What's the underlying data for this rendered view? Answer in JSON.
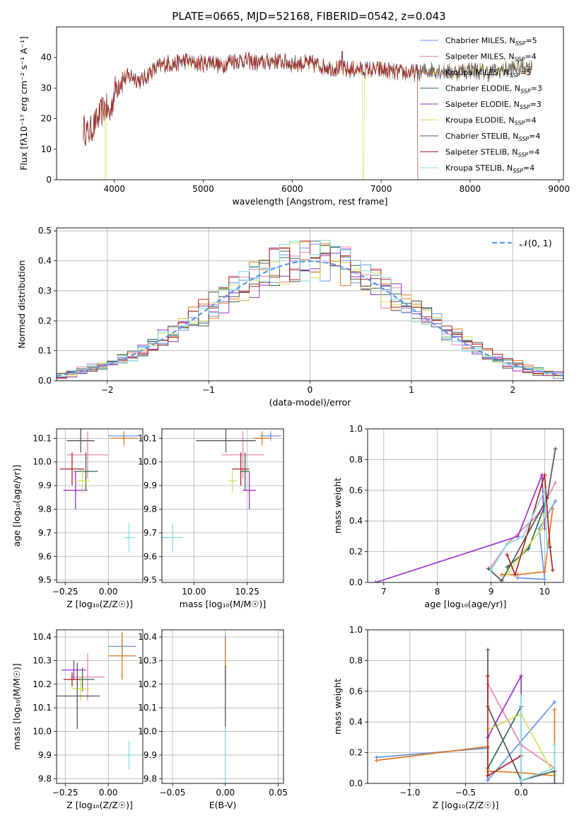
{
  "figure": {
    "title": "PLATE=0665, MJD=52168, FIBERID=0542, z=0.043"
  },
  "series_colors": [
    "#6495ed",
    "#ee82ae",
    "#e0781e",
    "#2f6e57",
    "#9932cc",
    "#d4e157",
    "#555555",
    "#b22222",
    "#7fdfe8"
  ],
  "chart_data": [
    {
      "id": "spectrum",
      "type": "line",
      "xlabel": "wavelength [Angstrom, rest frame]",
      "ylabel": "Flux [f$_\\lambda$10$^{-17}$ erg cm$^{-2}$ s$^{-1}$ A$^{-1}$]",
      "ylabel_text": "Flux [fλ10⁻¹⁷ erg cm⁻² s⁻¹ A⁻¹]",
      "xlim": [
        3350,
        9050
      ],
      "ylim": [
        0,
        50
      ],
      "xticks": [
        4000,
        5000,
        6000,
        7000,
        8000,
        9000
      ],
      "yticks": [
        0,
        10,
        20,
        30,
        40
      ],
      "legend_placement": "top-right",
      "series": [
        {
          "name": "Chabrier MILES, N",
          "sub": "SSP",
          "suffix": "=5"
        },
        {
          "name": "Salpeter MILES, N",
          "sub": "SSP",
          "suffix": "=4"
        },
        {
          "name": "Kroupa MILES, N",
          "sub": "SSP",
          "suffix": "=5"
        },
        {
          "name": "Chabrier ELODIE, N",
          "sub": "SSP",
          "suffix": "=3"
        },
        {
          "name": "Salpeter ELODIE, N",
          "sub": "SSP",
          "suffix": "=3"
        },
        {
          "name": "Kroupa ELODIE, N",
          "sub": "SSP",
          "suffix": "=4"
        },
        {
          "name": "Chabrier STELIB, N",
          "sub": "SSP",
          "suffix": "=4"
        },
        {
          "name": "Salpeter STELIB, N",
          "sub": "SSP",
          "suffix": "=4"
        },
        {
          "name": "Kroupa STELIB, N",
          "sub": "SSP",
          "suffix": "=4"
        }
      ],
      "continuum": [
        [
          3650,
          17
        ],
        [
          3700,
          15
        ],
        [
          3800,
          19
        ],
        [
          3850,
          22
        ],
        [
          3900,
          24
        ],
        [
          3950,
          21
        ],
        [
          4000,
          29
        ],
        [
          4050,
          32
        ],
        [
          4100,
          33
        ],
        [
          4200,
          34
        ],
        [
          4300,
          32
        ],
        [
          4400,
          35
        ],
        [
          4500,
          37
        ],
        [
          4600,
          38
        ],
        [
          4700,
          38
        ],
        [
          4800,
          39
        ],
        [
          4900,
          38
        ],
        [
          5000,
          38
        ],
        [
          5100,
          39
        ],
        [
          5200,
          37
        ],
        [
          5300,
          39
        ],
        [
          5400,
          39
        ],
        [
          5500,
          39
        ],
        [
          5600,
          38
        ],
        [
          5800,
          39
        ],
        [
          6000,
          38
        ],
        [
          6200,
          38
        ],
        [
          6400,
          37
        ],
        [
          6600,
          36
        ],
        [
          6800,
          36
        ],
        [
          7000,
          36
        ],
        [
          7200,
          35
        ],
        [
          7400,
          35
        ],
        [
          7600,
          36
        ],
        [
          7800,
          35
        ],
        [
          8000,
          36
        ],
        [
          8200,
          35
        ],
        [
          8400,
          36
        ],
        [
          8600,
          37
        ],
        [
          8700,
          37
        ]
      ],
      "dropouts": [
        {
          "series": 5,
          "x": 3900
        },
        {
          "series": 5,
          "x": 6800
        },
        {
          "series": 7,
          "x": 7420
        }
      ],
      "emission_peak": {
        "x": 6563,
        "y": 42
      }
    },
    {
      "id": "residual_histogram",
      "type": "histogram",
      "xlabel": "(data-model)/error",
      "ylabel": "Normed distribution",
      "xlim": [
        -2.5,
        2.5
      ],
      "ylim": [
        0,
        0.51
      ],
      "xticks": [
        -2,
        -1,
        0,
        1,
        2
      ],
      "yticks": [
        0.0,
        0.1,
        0.2,
        0.3,
        0.4,
        0.5
      ],
      "bin_width": 0.1,
      "reference_curve": {
        "name": "𝒩(0, 1)",
        "mean": 0,
        "sigma": 1,
        "color": "#6495ed",
        "style": "dashed"
      },
      "legend_placement": "top-right",
      "series_count": 9
    },
    {
      "id": "age_vs_Z",
      "type": "scatter",
      "xlabel": "Z [log₁₀(Z/Z☉)]",
      "ylabel": "age  [log₁₀(age/yr)]",
      "xlim": [
        -0.3,
        0.2
      ],
      "ylim": [
        9.49,
        10.14
      ],
      "xticks": [
        -0.25,
        0.0
      ],
      "yticks": [
        9.5,
        9.6,
        9.7,
        9.8,
        9.9,
        10.0,
        10.1
      ],
      "points": [
        {
          "s": 0,
          "x": 0.09,
          "y": 10.11,
          "xerr": 0.09,
          "yerr": 0.02
        },
        {
          "s": 1,
          "x": -0.12,
          "y": 10.03,
          "xerr": 0.12,
          "yerr": 0.1
        },
        {
          "s": 2,
          "x": 0.09,
          "y": 10.1,
          "xerr": 0.08,
          "yerr": 0.03
        },
        {
          "s": 3,
          "x": -0.13,
          "y": 9.96,
          "xerr": 0.07,
          "yerr": 0.08
        },
        {
          "s": 4,
          "x": -0.19,
          "y": 9.88,
          "xerr": 0.07,
          "yerr": 0.08
        },
        {
          "s": 5,
          "x": -0.15,
          "y": 9.92,
          "xerr": 0.04,
          "yerr": 0.05
        },
        {
          "s": 6,
          "x": -0.16,
          "y": 10.09,
          "xerr": 0.08,
          "yerr": 0.05
        },
        {
          "s": 7,
          "x": -0.21,
          "y": 9.97,
          "xerr": 0.07,
          "yerr": 0.07
        },
        {
          "s": 8,
          "x": 0.12,
          "y": 9.68,
          "xerr": 0.03,
          "yerr": 0.06
        }
      ]
    },
    {
      "id": "age_vs_mass",
      "type": "scatter",
      "xlabel": "mass [log₁₀(M/M☉)]",
      "ylabel": "",
      "xlim": [
        9.85,
        10.42
      ],
      "ylim": [
        9.49,
        10.14
      ],
      "xticks": [
        10.0,
        10.25
      ],
      "yticks": [
        9.5,
        9.6,
        9.7,
        9.8,
        9.9,
        10.0,
        10.1
      ],
      "points": [
        {
          "s": 0,
          "x": 10.36,
          "y": 10.11,
          "xerr": 0.05,
          "yerr": 0.02
        },
        {
          "s": 1,
          "x": 10.23,
          "y": 10.03,
          "xerr": 0.1,
          "yerr": 0.1
        },
        {
          "s": 2,
          "x": 10.32,
          "y": 10.1,
          "xerr": 0.04,
          "yerr": 0.03
        },
        {
          "s": 3,
          "x": 10.24,
          "y": 9.96,
          "xerr": 0.02,
          "yerr": 0.08
        },
        {
          "s": 4,
          "x": 10.26,
          "y": 9.88,
          "xerr": 0.03,
          "yerr": 0.08
        },
        {
          "s": 5,
          "x": 10.18,
          "y": 9.92,
          "xerr": 0.02,
          "yerr": 0.05
        },
        {
          "s": 6,
          "x": 10.15,
          "y": 10.09,
          "xerr": 0.14,
          "yerr": 0.05
        },
        {
          "s": 7,
          "x": 10.22,
          "y": 9.97,
          "xerr": 0.04,
          "yerr": 0.07
        },
        {
          "s": 8,
          "x": 9.9,
          "y": 9.68,
          "xerr": 0.05,
          "yerr": 0.06
        }
      ]
    },
    {
      "id": "weight_vs_age",
      "type": "line",
      "xlabel": "age  [log₁₀(age/yr)]",
      "ylabel": "mass weight",
      "xlim": [
        6.7,
        10.35
      ],
      "ylim": [
        0,
        1.0
      ],
      "xticks": [
        7,
        8,
        9,
        10
      ],
      "yticks": [
        0.0,
        0.2,
        0.4,
        0.6,
        0.8,
        1.0
      ],
      "series": [
        {
          "s": 0,
          "points": [
            [
              9.5,
              0.03
            ],
            [
              10.0,
              0.02
            ],
            [
              9.9,
              0.35
            ],
            [
              10.2,
              0.53
            ]
          ]
        },
        {
          "s": 1,
          "points": [
            [
              9.0,
              0.1
            ],
            [
              9.3,
              0.25
            ],
            [
              9.9,
              0.45
            ],
            [
              10.2,
              0.65
            ]
          ]
        },
        {
          "s": 2,
          "points": [
            [
              9.2,
              0.05
            ],
            [
              9.5,
              0.05
            ],
            [
              10.0,
              0.07
            ],
            [
              10.15,
              0.48
            ]
          ]
        },
        {
          "s": 3,
          "points": [
            [
              9.3,
              0.1
            ],
            [
              9.7,
              0.22
            ],
            [
              10.0,
              0.5
            ]
          ]
        },
        {
          "s": 4,
          "points": [
            [
              6.85,
              0.0
            ],
            [
              9.5,
              0.3
            ],
            [
              9.95,
              0.7
            ],
            [
              10.0,
              0.35
            ]
          ]
        },
        {
          "s": 5,
          "points": [
            [
              9.3,
              0.05
            ],
            [
              9.6,
              0.2
            ],
            [
              9.95,
              0.35
            ],
            [
              10.0,
              0.45
            ]
          ]
        },
        {
          "s": 6,
          "points": [
            [
              8.95,
              0.09
            ],
            [
              9.2,
              0.01
            ],
            [
              10.05,
              0.55
            ],
            [
              10.2,
              0.87
            ]
          ]
        },
        {
          "s": 7,
          "points": [
            [
              9.3,
              0.18
            ],
            [
              9.45,
              0.05
            ],
            [
              10.0,
              0.7
            ],
            [
              10.1,
              0.23
            ],
            [
              10.15,
              0.08
            ]
          ]
        },
        {
          "s": 8,
          "points": [
            [
              9.0,
              0.08
            ],
            [
              9.3,
              0.25
            ],
            [
              9.6,
              0.3
            ],
            [
              10.0,
              0.6
            ],
            [
              10.05,
              0.2
            ]
          ]
        }
      ]
    },
    {
      "id": "mass_vs_Z",
      "type": "scatter",
      "xlabel": "Z [log₁₀(Z/Z☉)]",
      "ylabel": "mass [log₁₀(M/M☉)]",
      "xlim": [
        -0.3,
        0.2
      ],
      "ylim": [
        9.78,
        10.43
      ],
      "xticks": [
        -0.25,
        0.0
      ],
      "yticks": [
        9.8,
        9.9,
        10.0,
        10.1,
        10.2,
        10.3,
        10.4
      ],
      "points": [
        {
          "s": 0,
          "x": 0.08,
          "y": 10.36,
          "xerr": 0.08,
          "yerr": 0.05
        },
        {
          "s": 1,
          "x": -0.12,
          "y": 10.23,
          "xerr": 0.1,
          "yerr": 0.1
        },
        {
          "s": 2,
          "x": 0.08,
          "y": 10.32,
          "xerr": 0.08,
          "yerr": 0.1
        },
        {
          "s": 3,
          "x": -0.15,
          "y": 10.22,
          "xerr": 0.07,
          "yerr": 0.05
        },
        {
          "s": 4,
          "x": -0.2,
          "y": 10.26,
          "xerr": 0.07,
          "yerr": 0.04
        },
        {
          "s": 5,
          "x": -0.16,
          "y": 10.18,
          "xerr": 0.05,
          "yerr": 0.05
        },
        {
          "s": 6,
          "x": -0.18,
          "y": 10.15,
          "xerr": 0.13,
          "yerr": 0.14
        },
        {
          "s": 7,
          "x": -0.21,
          "y": 10.22,
          "xerr": 0.05,
          "yerr": 0.03
        },
        {
          "s": 8,
          "x": 0.12,
          "y": 9.9,
          "xerr": 0.03,
          "yerr": 0.06
        }
      ]
    },
    {
      "id": "mass_vs_ebv",
      "type": "scatter",
      "xlabel": "E(B-V)",
      "ylabel": "",
      "xlim": [
        -0.06,
        0.055
      ],
      "ylim": [
        9.78,
        10.43
      ],
      "xticks": [
        -0.05,
        0.0,
        0.05
      ],
      "yticks": [
        9.8,
        9.9,
        10.0,
        10.1,
        10.2,
        10.3,
        10.4
      ],
      "points": [
        {
          "s": 0,
          "x": 0.0,
          "y": 10.36,
          "xerr": 0.0,
          "yerr": 0.05
        },
        {
          "s": 2,
          "x": 0.0,
          "y": 10.32,
          "xerr": 0.0,
          "yerr": 0.08
        },
        {
          "s": 7,
          "x": 0.0,
          "y": 10.24,
          "xerr": 0.0,
          "yerr": 0.04
        },
        {
          "s": 6,
          "x": 0.0,
          "y": 10.14,
          "xerr": 0.0,
          "yerr": 0.14
        },
        {
          "s": 8,
          "x": 0.0,
          "y": 9.9,
          "xerr": 0.0,
          "yerr": 0.12
        }
      ]
    },
    {
      "id": "weight_vs_Z",
      "type": "line",
      "xlabel": "Z [log₁₀(Z/Z☉)]",
      "ylabel": "mass weight",
      "xlim": [
        -1.38,
        0.38
      ],
      "ylim": [
        0,
        1.0
      ],
      "xticks": [
        -1.0,
        -0.5,
        0.0
      ],
      "yticks": [
        0.0,
        0.2,
        0.4,
        0.6,
        0.8,
        1.0
      ],
      "series": [
        {
          "s": 0,
          "points": [
            [
              -1.3,
              0.17
            ],
            [
              -0.3,
              0.23
            ],
            [
              -0.3,
              0.02
            ],
            [
              0.3,
              0.53
            ]
          ]
        },
        {
          "s": 1,
          "points": [
            [
              -0.3,
              0.65
            ],
            [
              0.0,
              0.25
            ],
            [
              0.3,
              0.1
            ]
          ]
        },
        {
          "s": 2,
          "points": [
            [
              -1.3,
              0.15
            ],
            [
              -0.3,
              0.24
            ],
            [
              -0.3,
              0.08
            ],
            [
              0.0,
              0.07
            ],
            [
              0.3,
              0.05
            ],
            [
              0.3,
              0.48
            ]
          ]
        },
        {
          "s": 3,
          "points": [
            [
              -0.3,
              0.1
            ],
            [
              0.0,
              0.5
            ]
          ]
        },
        {
          "s": 4,
          "points": [
            [
              -0.3,
              0.3
            ],
            [
              0.0,
              0.7
            ],
            [
              0.0,
              0.0
            ]
          ]
        },
        {
          "s": 5,
          "points": [
            [
              -0.3,
              0.35
            ],
            [
              0.0,
              0.45
            ],
            [
              0.3,
              0.05
            ]
          ]
        },
        {
          "s": 6,
          "points": [
            [
              -0.3,
              0.87
            ],
            [
              -0.3,
              0.5
            ],
            [
              0.0,
              0.02
            ],
            [
              0.3,
              0.08
            ],
            [
              0.3,
              0.0
            ]
          ]
        },
        {
          "s": 7,
          "points": [
            [
              -0.3,
              0.7
            ],
            [
              -0.3,
              0.05
            ],
            [
              0.0,
              0.18
            ]
          ]
        },
        {
          "s": 8,
          "points": [
            [
              0.0,
              0.57
            ],
            [
              0.0,
              0.02
            ],
            [
              0.3,
              0.1
            ],
            [
              0.3,
              0.25
            ]
          ]
        }
      ]
    }
  ]
}
